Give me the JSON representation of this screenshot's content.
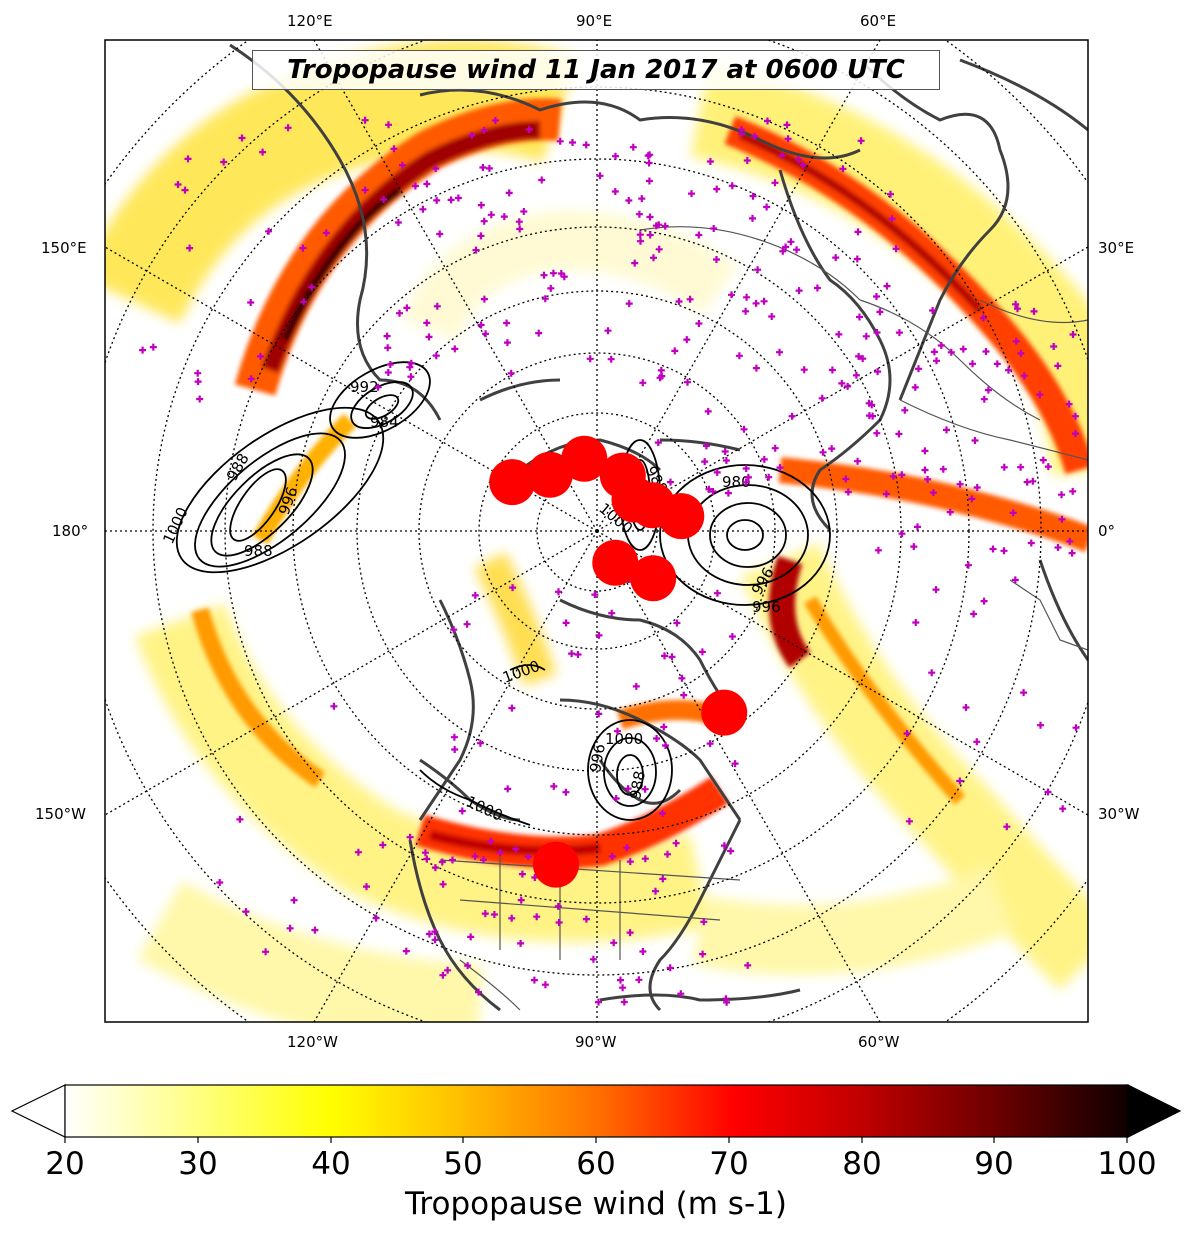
{
  "title": "Tropopause wind 11 Jan 2017 at 0600 UTC",
  "colorbar": {
    "label": "Tropopause wind (m s-1)",
    "ticks": [
      "20",
      "30",
      "40",
      "50",
      "60",
      "70",
      "80",
      "90",
      "100"
    ],
    "min": 20,
    "max": 100,
    "extend": "both",
    "colormap": "hot_r"
  },
  "map": {
    "projection": "north-polar-stereographic",
    "meridian_labels_top": [
      "120°E",
      "90°E",
      "60°E"
    ],
    "meridian_labels_bottom": [
      "120°W",
      "90°W",
      "60°W"
    ],
    "meridian_labels_left": [
      "150°E",
      "180°",
      "150°W"
    ],
    "meridian_labels_right": [
      "30°E",
      "0°",
      "30°W"
    ],
    "graticule": "dotted",
    "coastline_color": "#404040",
    "observation_marker_color": "#c000c0",
    "cyclone_marker_color": "#ff0000"
  },
  "pressure_contours": {
    "color": "#000000",
    "labels": [
      "1000",
      "996",
      "992",
      "988",
      "984",
      "980",
      "1000",
      "996",
      "988",
      "1000",
      "996",
      "988",
      "1000",
      "988",
      "996",
      "1000",
      "1000",
      "988"
    ]
  },
  "cyclone_centers": [
    {
      "lat": 82,
      "lon": 150
    },
    {
      "lat": 84,
      "lon": 130
    },
    {
      "lat": 84,
      "lon": 100
    },
    {
      "lat": 85,
      "lon": 65
    },
    {
      "lat": 86,
      "lon": 40
    },
    {
      "lat": 85,
      "lon": 25
    },
    {
      "lat": 83,
      "lon": 10
    },
    {
      "lat": 87,
      "lon": -60
    },
    {
      "lat": 84,
      "lon": -40
    },
    {
      "lat": 72,
      "lon": -55
    },
    {
      "lat": 63,
      "lon": -97
    }
  ]
}
